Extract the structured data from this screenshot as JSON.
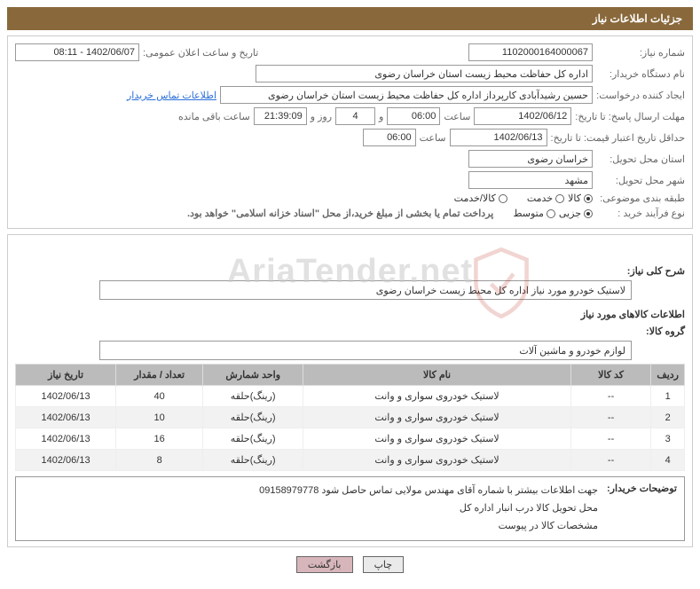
{
  "colors": {
    "header_bg": "#89693b",
    "header_fg": "#ffffff",
    "border": "#cccccc",
    "field_border": "#999999",
    "label_fg": "#666666",
    "table_header_bg": "#bbbbbb",
    "alt_row_bg": "#f2f2f2",
    "link": "#2a70d8",
    "btn_back_bg": "#d7b6bb",
    "watermark_fg": "rgba(200,200,200,0.55)"
  },
  "header": {
    "title": "جزئیات اطلاعات نیاز"
  },
  "form": {
    "need_number_label": "شماره نیاز:",
    "need_number": "1102000164000067",
    "announce_label": "تاریخ و ساعت اعلان عمومی:",
    "announce_value": "1402/06/07 - 08:11",
    "buyer_org_label": "نام دستگاه خریدار:",
    "buyer_org": "اداره کل حفاظت محیط زیست استان خراسان رضوی",
    "requester_label": "ایجاد کننده درخواست:",
    "requester": "حسین رشیدآبادی کارپرداز اداره کل حفاظت محیط زیست استان خراسان رضوی",
    "buyer_contact_link": "اطلاعات تماس خریدار",
    "reply_deadline_label": "مهلت ارسال پاسخ: تا تاریخ:",
    "reply_date": "1402/06/12",
    "hour_label": "ساعت",
    "reply_hour": "06:00",
    "days_label_and": "و",
    "days_value": "4",
    "days_word": "روز و",
    "countdown": "21:39:09",
    "remaining_label": "ساعت باقی مانده",
    "validity_label": "حداقل تاریخ اعتبار قیمت: تا تاریخ:",
    "validity_date": "1402/06/13",
    "validity_hour": "06:00",
    "province_label": "استان محل تحویل:",
    "province": "خراسان رضوی",
    "city_label": "شهر محل تحویل:",
    "city": "مشهد",
    "category_label": "طبقه بندی موضوعی:",
    "cat_goods": "کالا",
    "cat_service": "خدمت",
    "cat_goods_service": "کالا/خدمت",
    "category_selected": "goods",
    "process_label": "نوع فرآیند خرید :",
    "proc_partial": "جزیی",
    "proc_medium": "متوسط",
    "process_selected": "partial",
    "payment_notice": "پرداخت تمام یا بخشی از مبلغ خرید،از محل \"اسناد خزانه اسلامی\" خواهد بود."
  },
  "need": {
    "title_label": "شرح کلی نیاز:",
    "title_value": "لاستیک خودرو مورد نیاز اداره کل محیط زیست خراسان رضوی",
    "items_section_title": "اطلاعات کالاهای مورد نیاز",
    "group_label": "گروه کالا:",
    "group_value": "لوازم خودرو و ماشین آلات"
  },
  "table": {
    "columns": [
      "ردیف",
      "کد کالا",
      "نام کالا",
      "واحد شمارش",
      "تعداد / مقدار",
      "تاریخ نیاز"
    ],
    "col_widths": [
      "5%",
      "12%",
      "40%",
      "15%",
      "13%",
      "15%"
    ],
    "rows": [
      [
        "1",
        "--",
        "لاستیک خودروی سواری و وانت",
        "(رینگ)حلقه",
        "40",
        "1402/06/13"
      ],
      [
        "2",
        "--",
        "لاستیک خودروی سواری و وانت",
        "(رینگ)حلقه",
        "10",
        "1402/06/13"
      ],
      [
        "3",
        "--",
        "لاستیک خودروی سواری و وانت",
        "(رینگ)حلقه",
        "16",
        "1402/06/13"
      ],
      [
        "4",
        "--",
        "لاستیک خودروی سواری و وانت",
        "(رینگ)حلقه",
        "8",
        "1402/06/13"
      ]
    ]
  },
  "desc": {
    "label": "توضیحات خریدار:",
    "line1": "جهت اطلاعات بیشتر با شماره آقای مهندس مولایی تماس حاصل شود 09158979778",
    "line2": "محل تحویل کالا درب انبار اداره کل",
    "line3": "مشخصات کالا در پیوست"
  },
  "footer": {
    "print": "چاپ",
    "back": "بازگشت"
  },
  "watermark": {
    "text": "AriaTender.net"
  }
}
